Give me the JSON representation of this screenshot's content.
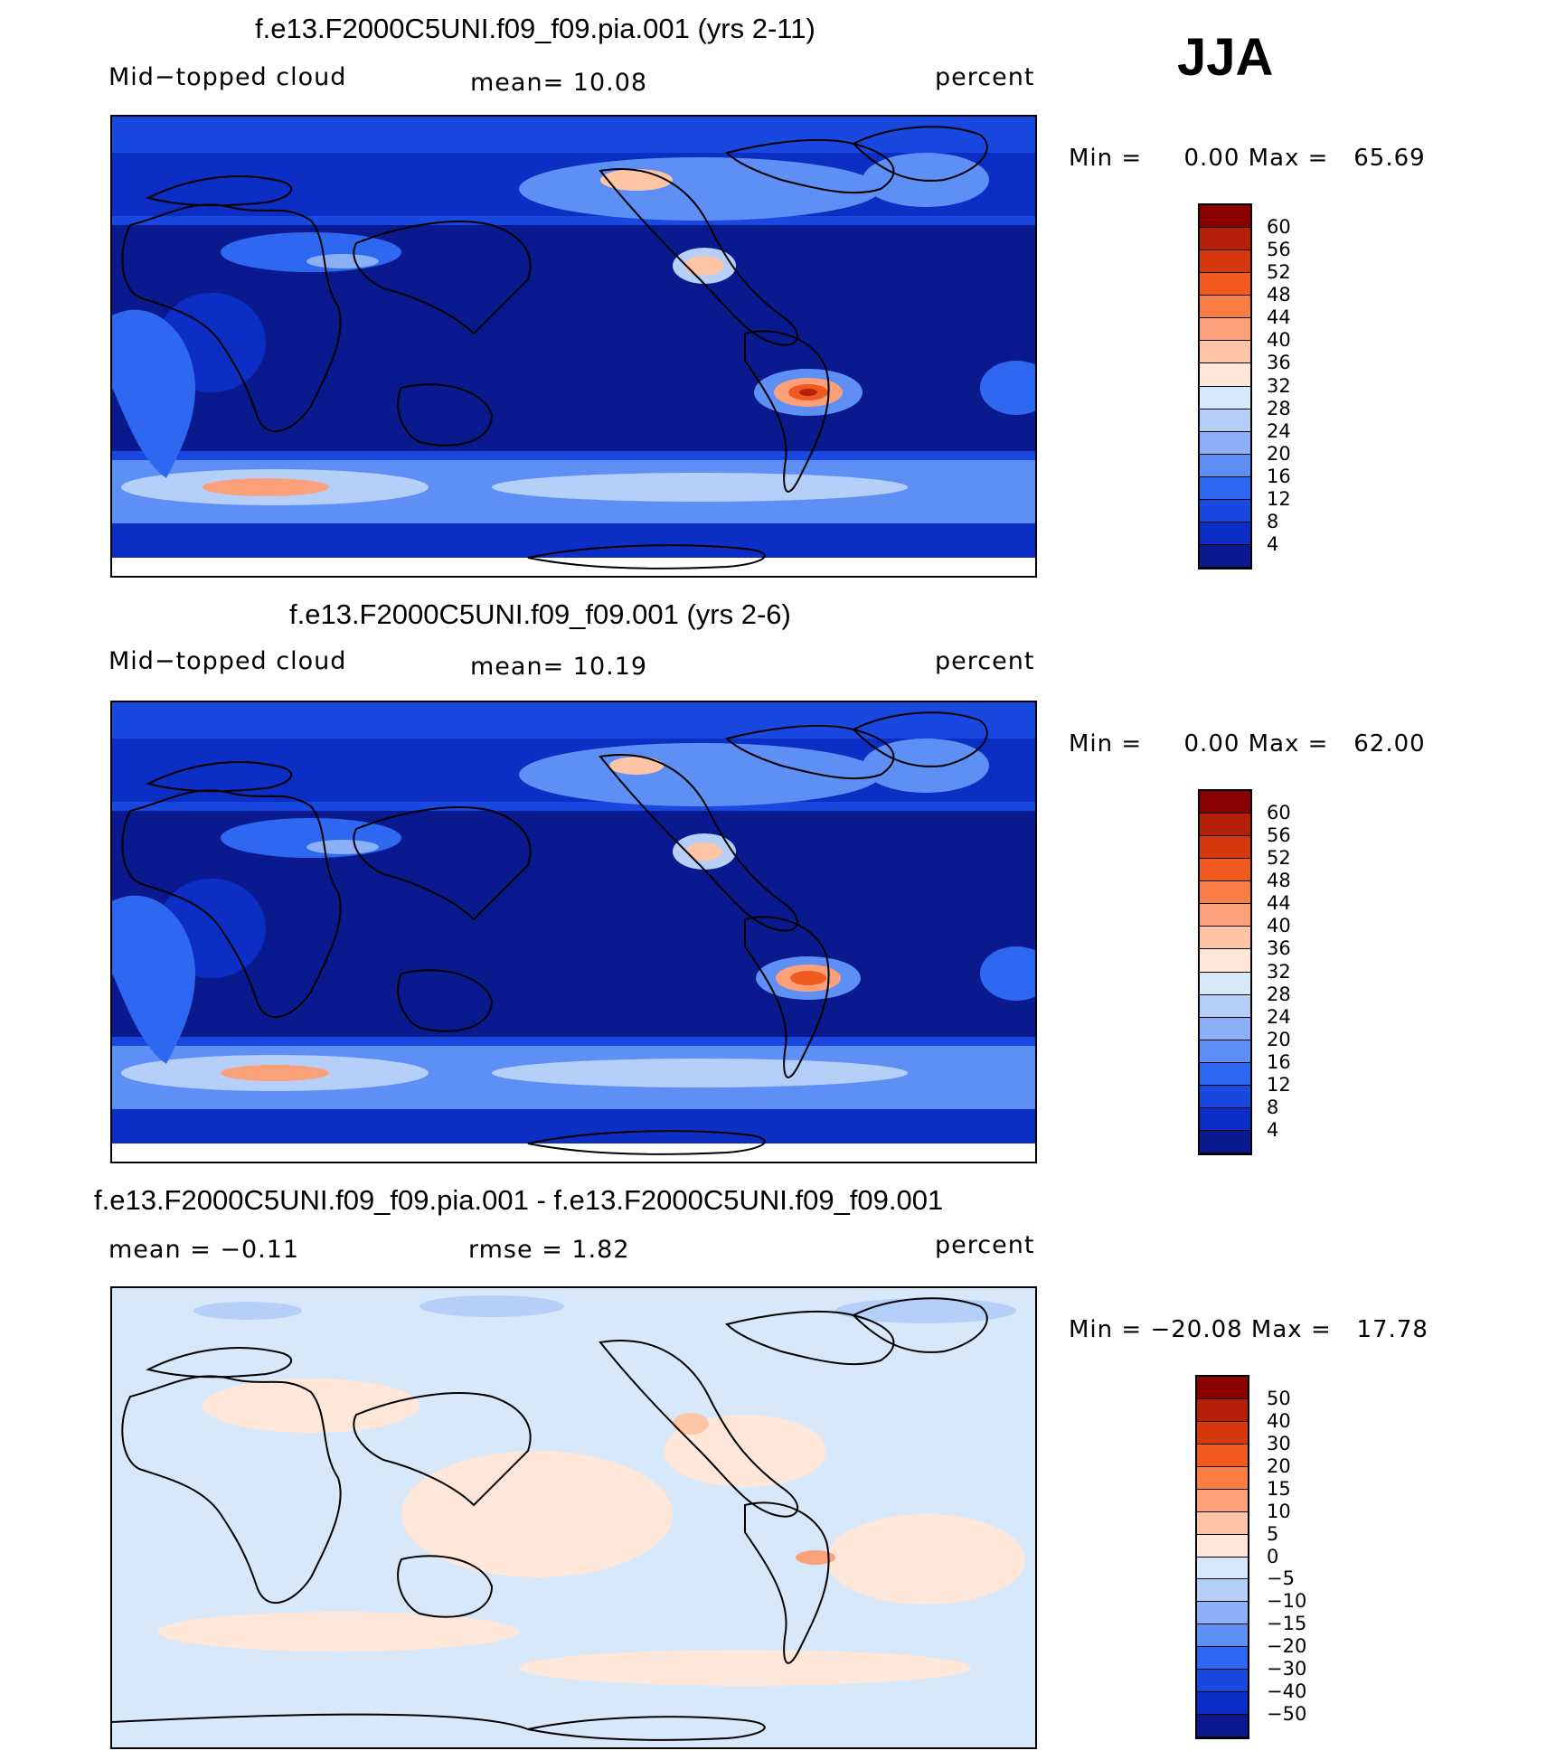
{
  "season": "JJA",
  "panels": [
    {
      "title": "f.e13.F2000C5UNI.f09_f09.pia.001 (yrs 2-11)",
      "variable": "Mid−topped cloud",
      "stat_left": "",
      "stat_center": "mean=   10.08",
      "units": "percent",
      "minmax": "Min =     0.00 Max =   65.69",
      "scale": "abs"
    },
    {
      "title": "f.e13.F2000C5UNI.f09_f09.001 (yrs 2-6)",
      "variable": "Mid−topped cloud",
      "stat_left": "",
      "stat_center": "mean=   10.19",
      "units": "percent",
      "minmax": "Min =     0.00 Max =   62.00",
      "scale": "abs"
    },
    {
      "title": "f.e13.F2000C5UNI.f09_f09.pia.001 - f.e13.F2000C5UNI.f09_f09.001",
      "variable": "mean =   −0.11",
      "stat_left": "",
      "stat_center": "rmse =    1.82",
      "units": "percent",
      "minmax": "Min = −20.08 Max =   17.78",
      "scale": "diff"
    }
  ],
  "colorbars": {
    "abs": {
      "labels": [
        "60",
        "56",
        "52",
        "48",
        "44",
        "40",
        "36",
        "32",
        "28",
        "24",
        "20",
        "16",
        "12",
        "8",
        "4"
      ],
      "colors": [
        "#8b0000",
        "#b5200b",
        "#d8380e",
        "#f05a1e",
        "#fa7d45",
        "#fca07a",
        "#fdc4a6",
        "#fee6d8",
        "#d8e8fb",
        "#b5cff9",
        "#8cb0f7",
        "#5e8ff5",
        "#2f68f0",
        "#1848df",
        "#0c2ec4",
        "#0a1a8e"
      ]
    },
    "diff": {
      "labels": [
        "50",
        "40",
        "30",
        "20",
        "15",
        "10",
        "5",
        "0",
        "−5",
        "−10",
        "−15",
        "−20",
        "−30",
        "−40",
        "−50"
      ],
      "colors": [
        "#8b0000",
        "#b5200b",
        "#d8380e",
        "#f05a1e",
        "#fa7d45",
        "#fca07a",
        "#fdc4a6",
        "#fee6d8",
        "#d8e8fb",
        "#b5cff9",
        "#8cb0f7",
        "#5e8ff5",
        "#2f68f0",
        "#1848df",
        "#0c2ec4",
        "#0a1a8e"
      ]
    }
  },
  "field_colors": {
    "deep_blue": "#0a1a8e",
    "dark_blue": "#0c2ec4",
    "mid_blue": "#1848df",
    "blue": "#2f68f0",
    "light_blue": "#8cb0f7",
    "pale_blue": "#d8e8fb",
    "pale_orange": "#fee6d8",
    "orange": "#fca07a",
    "red_orange": "#f05a1e",
    "red": "#b5200b",
    "coast": "#000000"
  }
}
